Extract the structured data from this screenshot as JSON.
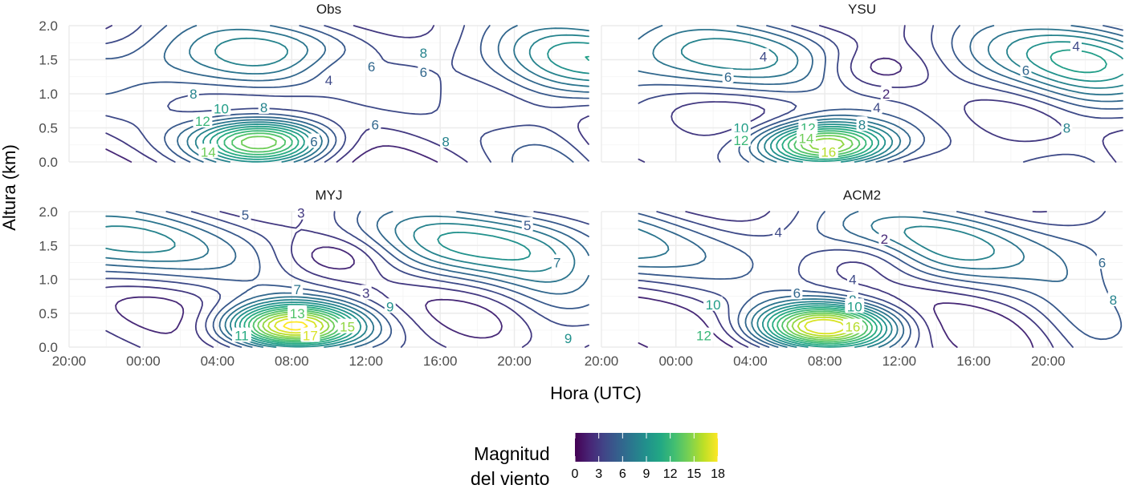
{
  "chart_data": {
    "type": "contour",
    "xlabel": "Hora (UTC)",
    "ylabel": "Altura (km)",
    "x_ticks": [
      "20:00",
      "00:00",
      "04:00",
      "08:00",
      "12:00",
      "16:00",
      "20:00"
    ],
    "y_ticks": [
      "0.0",
      "0.5",
      "1.0",
      "1.5",
      "2.0"
    ],
    "xlim_hours": [
      -4,
      24
    ],
    "ylim_km": [
      0,
      2
    ],
    "legend": {
      "title_lines": [
        "Magnitud",
        "del viento"
      ],
      "ticks": [
        "0",
        "3",
        "6",
        "9",
        "12",
        "15",
        "18"
      ],
      "range": [
        0,
        18
      ],
      "palette": "viridis",
      "position": "bottom"
    },
    "panels": [
      {
        "name": "Obs",
        "jet": {
          "center_hour": 6.5,
          "center_km": 0.3,
          "peak": 15
        },
        "labels": [
          {
            "text": "8",
            "hour": 2.7,
            "km": 1.0
          },
          {
            "text": "10",
            "hour": 4.2,
            "km": 0.78
          },
          {
            "text": "8",
            "hour": 6.5,
            "km": 0.8
          },
          {
            "text": "12",
            "hour": 3.2,
            "km": 0.6
          },
          {
            "text": "14",
            "hour": 3.5,
            "km": 0.15
          },
          {
            "text": "6",
            "hour": 9.2,
            "km": 0.3
          },
          {
            "text": "4",
            "hour": 10.0,
            "km": 1.2
          },
          {
            "text": "6",
            "hour": 12.3,
            "km": 1.4
          },
          {
            "text": "6",
            "hour": 12.5,
            "km": 0.55
          },
          {
            "text": "8",
            "hour": 15.1,
            "km": 1.6
          },
          {
            "text": "6",
            "hour": 15.1,
            "km": 1.32
          },
          {
            "text": "8",
            "hour": 16.3,
            "km": 0.3
          }
        ]
      },
      {
        "name": "YSU",
        "jet": {
          "center_hour": 8,
          "center_km": 0.25,
          "peak": 17
        },
        "labels": [
          {
            "text": "4",
            "hour": 4.7,
            "km": 1.55
          },
          {
            "text": "6",
            "hour": 2.8,
            "km": 1.25
          },
          {
            "text": "2",
            "hour": 11.3,
            "km": 1.0
          },
          {
            "text": "4",
            "hour": 10.8,
            "km": 0.8
          },
          {
            "text": "8",
            "hour": 10.0,
            "km": 0.55
          },
          {
            "text": "10",
            "hour": 3.5,
            "km": 0.5
          },
          {
            "text": "12",
            "hour": 3.5,
            "km": 0.32
          },
          {
            "text": "12",
            "hour": 7.1,
            "km": 0.5
          },
          {
            "text": "14",
            "hour": 7.0,
            "km": 0.35
          },
          {
            "text": "16",
            "hour": 8.2,
            "km": 0.15
          },
          {
            "text": "6",
            "hour": 18.8,
            "km": 1.35
          },
          {
            "text": "4",
            "hour": 21.5,
            "km": 1.7
          },
          {
            "text": "8",
            "hour": 21.0,
            "km": 0.5
          }
        ]
      },
      {
        "name": "MYJ",
        "jet": {
          "center_hour": 8,
          "center_km": 0.3,
          "peak": 18
        },
        "labels": [
          {
            "text": "5",
            "hour": 5.5,
            "km": 1.95
          },
          {
            "text": "3",
            "hour": 8.5,
            "km": 1.98
          },
          {
            "text": "5",
            "hour": 20.7,
            "km": 1.8
          },
          {
            "text": "7",
            "hour": 22.3,
            "km": 1.25
          },
          {
            "text": "7",
            "hour": 8.3,
            "km": 0.85
          },
          {
            "text": "3",
            "hour": 12.0,
            "km": 0.8
          },
          {
            "text": "9",
            "hour": 13.3,
            "km": 0.6
          },
          {
            "text": "13",
            "hour": 8.3,
            "km": 0.5
          },
          {
            "text": "11",
            "hour": 5.3,
            "km": 0.17
          },
          {
            "text": "15",
            "hour": 11.0,
            "km": 0.3
          },
          {
            "text": "17",
            "hour": 9.0,
            "km": 0.17
          },
          {
            "text": "9",
            "hour": 22.9,
            "km": 0.13
          }
        ]
      },
      {
        "name": "ACM2",
        "jet": {
          "center_hour": 8,
          "center_km": 0.3,
          "peak": 17
        },
        "labels": [
          {
            "text": "4",
            "hour": 5.5,
            "km": 1.7
          },
          {
            "text": "2",
            "hour": 11.2,
            "km": 1.6
          },
          {
            "text": "6",
            "hour": 22.9,
            "km": 1.25
          },
          {
            "text": "4",
            "hour": 9.5,
            "km": 1.0
          },
          {
            "text": "6",
            "hour": 6.5,
            "km": 0.8
          },
          {
            "text": "8",
            "hour": 9.5,
            "km": 0.7
          },
          {
            "text": "8",
            "hour": 23.5,
            "km": 0.7
          },
          {
            "text": "10",
            "hour": 2.0,
            "km": 0.63
          },
          {
            "text": "10",
            "hour": 9.6,
            "km": 0.6
          },
          {
            "text": "16",
            "hour": 9.5,
            "km": 0.3
          },
          {
            "text": "12",
            "hour": 1.5,
            "km": 0.17
          }
        ]
      }
    ]
  }
}
